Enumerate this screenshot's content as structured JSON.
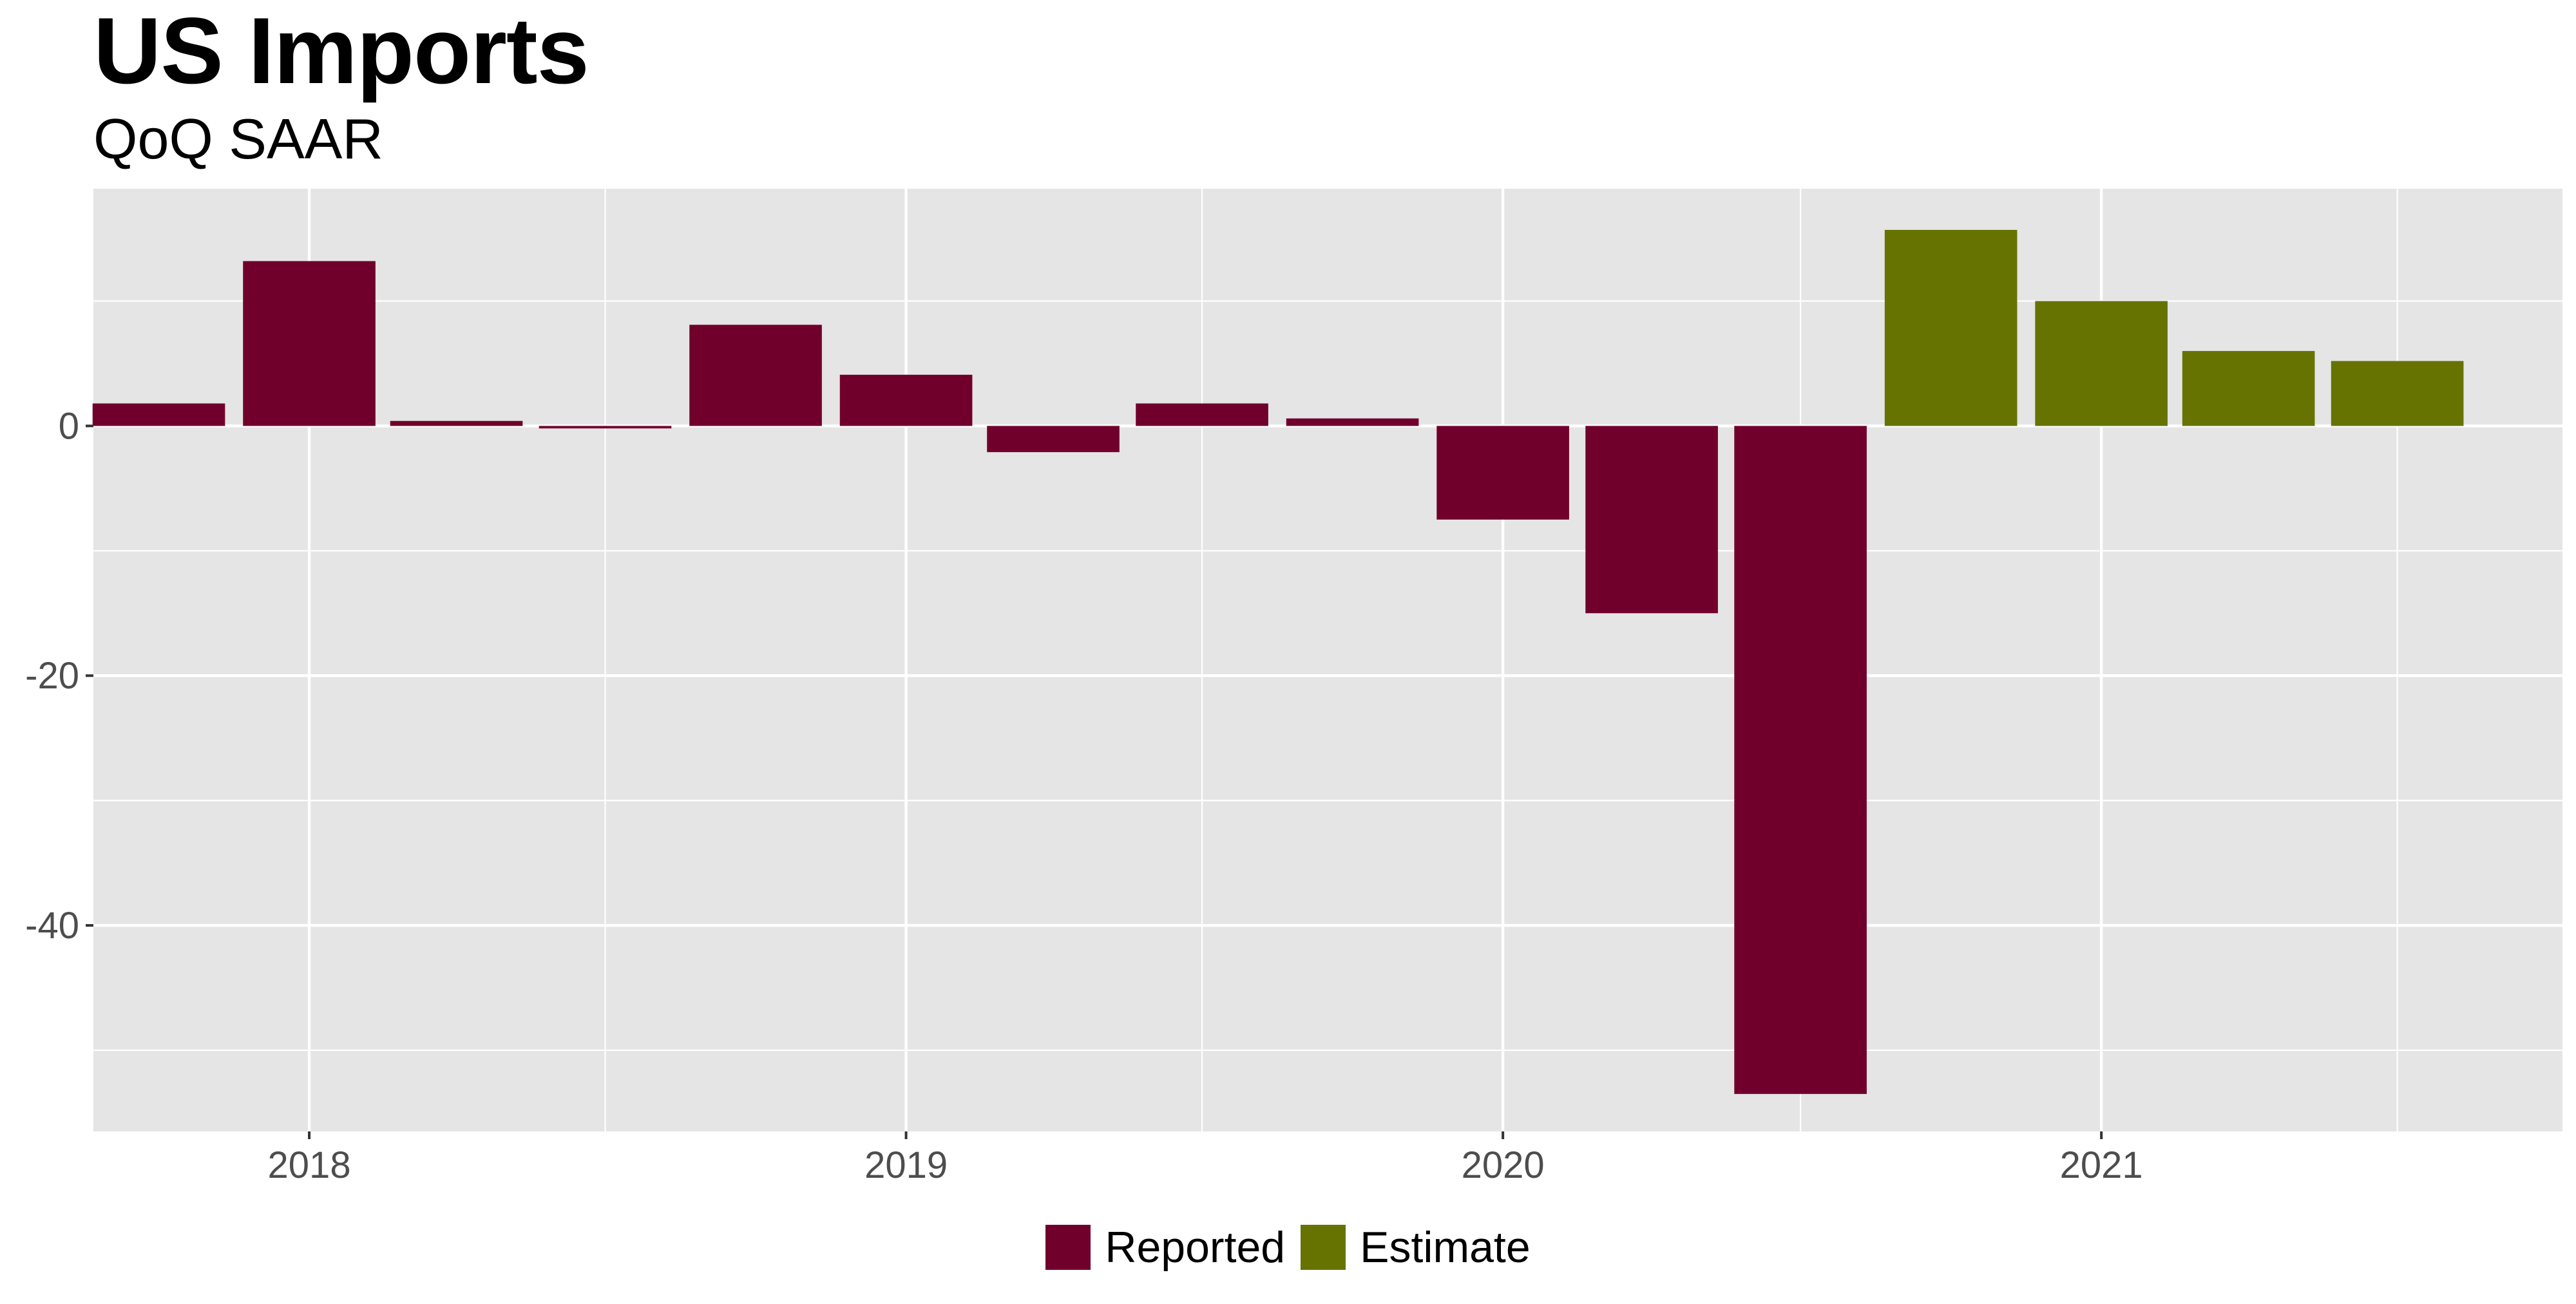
{
  "title": "US Imports",
  "subtitle": "QoQ SAAR",
  "colors": {
    "Reported": "#70002b",
    "Estimate": "#667300",
    "panel_background": "#e5e5e5",
    "grid": "#ffffff",
    "tick_text": "#4d4d4d"
  },
  "legend": {
    "position": "bottom",
    "items": [
      {
        "label": "Reported",
        "color": "#70002b"
      },
      {
        "label": "Estimate",
        "color": "#667300"
      }
    ]
  },
  "chart_data": {
    "type": "bar",
    "xlabel": "",
    "ylabel": "",
    "ylim": [
      -56.5,
      19
    ],
    "y_ticks": [
      0,
      -20,
      -40
    ],
    "y_minor_ticks": [
      10,
      -10,
      -30,
      -50
    ],
    "x_ticks": [
      "2018",
      "2019",
      "2020",
      "2021"
    ],
    "x_tick_positions": [
      "2018-01-01",
      "2019-01-01",
      "2020-01-01",
      "2021-01-01"
    ],
    "x_minor_tick_positions": [
      "2017-07-01",
      "2018-07-01",
      "2019-07-01",
      "2020-07-01",
      "2021-07-01"
    ],
    "grid": true,
    "series": [
      {
        "name": "Reported",
        "points": [
          {
            "date": "2017-10-01",
            "value": 1.8
          },
          {
            "date": "2018-01-01",
            "value": 13.2
          },
          {
            "date": "2018-04-01",
            "value": 0.4
          },
          {
            "date": "2018-07-01",
            "value": -0.2
          },
          {
            "date": "2018-10-01",
            "value": 8.1
          },
          {
            "date": "2019-01-01",
            "value": 4.1
          },
          {
            "date": "2019-04-01",
            "value": -2.1
          },
          {
            "date": "2019-07-01",
            "value": 1.8
          },
          {
            "date": "2019-10-01",
            "value": 0.6
          },
          {
            "date": "2020-01-01",
            "value": -7.5
          },
          {
            "date": "2020-04-01",
            "value": -15.0
          },
          {
            "date": "2020-07-01",
            "value": -53.5
          }
        ]
      },
      {
        "name": "Estimate",
        "points": [
          {
            "date": "2020-10-01",
            "value": 15.7
          },
          {
            "date": "2021-01-01",
            "value": 10.0
          },
          {
            "date": "2021-04-01",
            "value": 6.0
          },
          {
            "date": "2021-07-01",
            "value": 5.2
          }
        ]
      }
    ]
  }
}
